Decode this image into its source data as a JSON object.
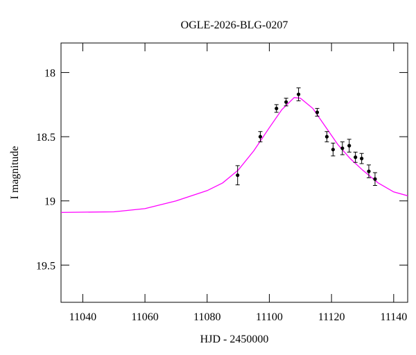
{
  "chart_data": {
    "type": "scatter",
    "title": "OGLE-2026-BLG-0207",
    "x_label": "HJD - 2450000",
    "y_label": "I magnitude",
    "xlim": [
      11033,
      11144.5
    ],
    "ylim": [
      19.79,
      17.77
    ],
    "y_inverted": true,
    "xticks": [
      11040,
      11060,
      11080,
      11100,
      11120,
      11140
    ],
    "yticks": [
      18,
      18.5,
      19,
      19.5
    ],
    "series": [
      {
        "type": "line",
        "color": "#ff00ff",
        "x": [
          11033,
          11050,
          11060,
          11070,
          11080,
          11085,
          11090,
          11095,
          11100,
          11104,
          11108,
          11110,
          11114,
          11118,
          11122,
          11126,
          11130,
          11135,
          11140,
          11144.5
        ],
        "values": [
          19.09,
          19.085,
          19.06,
          19.0,
          18.92,
          18.86,
          18.76,
          18.61,
          18.43,
          18.29,
          18.195,
          18.2,
          18.28,
          18.42,
          18.56,
          18.67,
          18.76,
          18.86,
          18.93,
          18.96
        ]
      },
      {
        "type": "errorbar",
        "color": "#000000",
        "x": [
          11089.8,
          11097.1,
          11102.3,
          11105.4,
          11109.4,
          11115.4,
          11118.5,
          11120.5,
          11123.5,
          11125.7,
          11127.7,
          11129.7,
          11132.0,
          11134.0
        ],
        "values": [
          18.8,
          18.5,
          18.28,
          18.23,
          18.17,
          18.31,
          18.5,
          18.6,
          18.59,
          18.57,
          18.66,
          18.67,
          18.77,
          18.83
        ],
        "errors": [
          0.075,
          0.04,
          0.03,
          0.03,
          0.05,
          0.03,
          0.04,
          0.05,
          0.05,
          0.05,
          0.04,
          0.04,
          0.05,
          0.05
        ]
      }
    ]
  }
}
